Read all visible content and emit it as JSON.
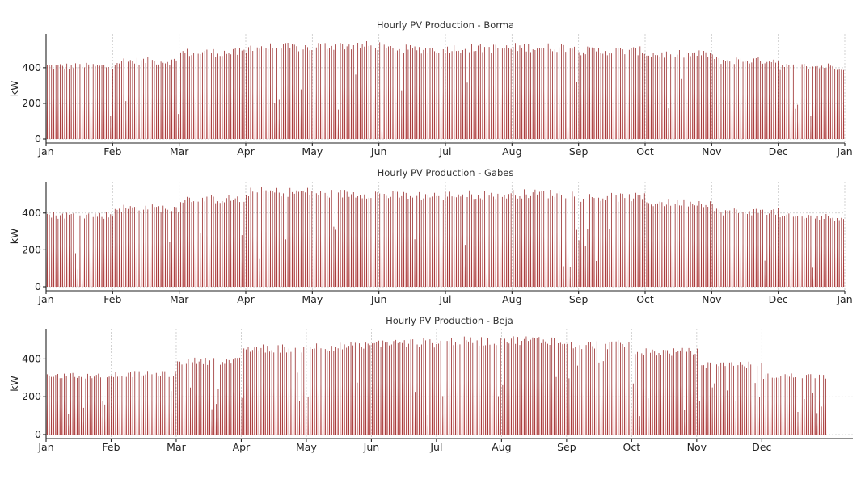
{
  "colors": {
    "fill": "#eaa0a0",
    "line": "#8b1010",
    "grid": "#c8c8c8"
  },
  "chart_data": [
    {
      "type": "area",
      "title": "Hourly PV Production - Borma",
      "ylabel": "kW",
      "ylim": [
        0,
        590
      ],
      "yticks": [
        0,
        200,
        400
      ],
      "xticks": [
        "Jan",
        "Feb",
        "Mar",
        "Apr",
        "May",
        "Jun",
        "Jul",
        "Aug",
        "Sep",
        "Oct",
        "Nov",
        "Dec",
        "Jan"
      ],
      "grid": true,
      "series": [
        {
          "daily_peak_kw_by_month": [
            420,
            450,
            500,
            530,
            540,
            520,
            525,
            530,
            510,
            490,
            455,
            420
          ]
        }
      ]
    },
    {
      "type": "area",
      "title": "Hourly PV Production - Gabes",
      "ylabel": "kW",
      "ylim": [
        0,
        570
      ],
      "yticks": [
        0,
        200,
        400
      ],
      "xticks": [
        "Jan",
        "Feb",
        "Mar",
        "Apr",
        "May",
        "Jun",
        "Jul",
        "Aug",
        "Sep",
        "Oct",
        "Nov",
        "Dec",
        "Jan"
      ],
      "grid": true,
      "series": [
        {
          "daily_peak_kw_by_month": [
            400,
            440,
            490,
            530,
            520,
            510,
            515,
            520,
            500,
            470,
            420,
            390
          ]
        }
      ]
    },
    {
      "type": "area",
      "title": "Hourly PV Production - Beja",
      "ylabel": "kW",
      "ylim": [
        0,
        560
      ],
      "yticks": [
        0,
        200,
        400
      ],
      "xticks": [
        "Jan",
        "Feb",
        "Mar",
        "Apr",
        "May",
        "Jun",
        "Jul",
        "Aug",
        "Sep",
        "Oct",
        "Nov",
        "Dec"
      ],
      "grid": true,
      "series": [
        {
          "daily_peak_kw_by_month": [
            320,
            330,
            400,
            470,
            480,
            500,
            510,
            515,
            490,
            450,
            380,
            320
          ]
        }
      ]
    }
  ]
}
